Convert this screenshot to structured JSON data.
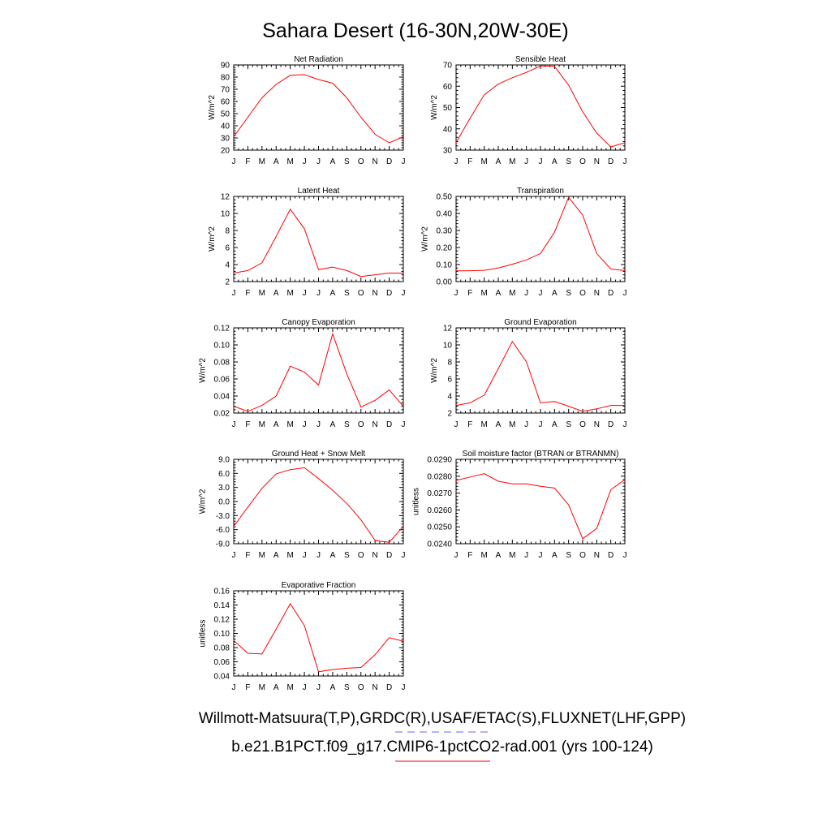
{
  "page": {
    "title": "Sahara Desert (16-30N,20W-30E)"
  },
  "legend": {
    "obs_label": "Willmott-Matsuura(T,P),GRDC(R),USAF/ETAC(S),FLUXNET(LHF,GPP)",
    "obs_color": "#6666ff",
    "model_label": "b.e21.B1PCT.f09_g17.CMIP6-1pctCO2-rad.001 (yrs 100-124)",
    "model_color": "#ff0000"
  },
  "chart_data": [
    {
      "type": "line",
      "title": "Net Radiation",
      "ylabel": "W/m^2",
      "x": [
        "J",
        "F",
        "M",
        "A",
        "M",
        "J",
        "J",
        "A",
        "S",
        "O",
        "N",
        "D",
        "J"
      ],
      "ylim": [
        20,
        90
      ],
      "yticks": [
        20,
        30,
        40,
        50,
        60,
        70,
        80,
        90
      ],
      "ytick_labels": [
        "20",
        "30",
        "40",
        "50",
        "60",
        "70",
        "80",
        "90"
      ],
      "series": [
        {
          "values": [
            31,
            47,
            63,
            74,
            81.5,
            82,
            78,
            75,
            63,
            47,
            33,
            26,
            31
          ],
          "color": "#ff0000"
        }
      ]
    },
    {
      "type": "line",
      "title": "Sensible Heat",
      "ylabel": "W/m^2",
      "x": [
        "J",
        "F",
        "M",
        "A",
        "M",
        "J",
        "J",
        "A",
        "S",
        "O",
        "N",
        "D",
        "J"
      ],
      "ylim": [
        30,
        70
      ],
      "yticks": [
        30,
        40,
        50,
        60,
        70
      ],
      "ytick_labels": [
        "30",
        "40",
        "50",
        "60",
        "70"
      ],
      "series": [
        {
          "values": [
            33.5,
            45,
            56,
            61,
            64,
            66.5,
            69.5,
            69.3,
            60.5,
            48,
            38,
            31.5,
            33.5
          ],
          "color": "#ff0000"
        }
      ]
    },
    {
      "type": "line",
      "title": "Latent Heat",
      "ylabel": "W/m^2",
      "x": [
        "J",
        "F",
        "M",
        "A",
        "M",
        "J",
        "J",
        "A",
        "S",
        "O",
        "N",
        "D",
        "J"
      ],
      "ylim": [
        2,
        12
      ],
      "yticks": [
        2,
        4,
        6,
        8,
        10,
        12
      ],
      "ytick_labels": [
        "2",
        "4",
        "6",
        "8",
        "10",
        "12"
      ],
      "series": [
        {
          "values": [
            3.0,
            3.3,
            4.2,
            7.3,
            10.5,
            8.2,
            3.4,
            3.7,
            3.3,
            2.6,
            2.8,
            3.0,
            3.0
          ],
          "color": "#ff0000"
        }
      ]
    },
    {
      "type": "line",
      "title": "Transpiration",
      "ylabel": "W/m^2",
      "x": [
        "J",
        "F",
        "M",
        "A",
        "M",
        "J",
        "J",
        "A",
        "S",
        "O",
        "N",
        "D",
        "J"
      ],
      "ylim": [
        0,
        0.5
      ],
      "yticks": [
        0,
        0.1,
        0.2,
        0.3,
        0.4,
        0.5
      ],
      "ytick_labels": [
        "0.00",
        "0.10",
        "0.20",
        "0.30",
        "0.40",
        "0.50"
      ],
      "series": [
        {
          "values": [
            0.063,
            0.064,
            0.066,
            0.08,
            0.102,
            0.127,
            0.165,
            0.29,
            0.495,
            0.39,
            0.165,
            0.074,
            0.065
          ],
          "color": "#ff0000"
        }
      ]
    },
    {
      "type": "line",
      "title": "Canopy Evaporation",
      "ylabel": "W/m^2",
      "x": [
        "J",
        "F",
        "M",
        "A",
        "M",
        "J",
        "J",
        "A",
        "S",
        "O",
        "N",
        "D",
        "J"
      ],
      "ylim": [
        0.02,
        0.12
      ],
      "yticks": [
        0.02,
        0.04,
        0.06,
        0.08,
        0.1,
        0.12
      ],
      "ytick_labels": [
        "0.02",
        "0.04",
        "0.06",
        "0.08",
        "0.10",
        "0.12"
      ],
      "series": [
        {
          "values": [
            0.028,
            0.022,
            0.029,
            0.04,
            0.075,
            0.068,
            0.053,
            0.113,
            0.066,
            0.027,
            0.035,
            0.047,
            0.028
          ],
          "color": "#ff0000"
        }
      ]
    },
    {
      "type": "line",
      "title": "Ground Evaporation",
      "ylabel": "W/m^2",
      "x": [
        "J",
        "F",
        "M",
        "A",
        "M",
        "J",
        "J",
        "A",
        "S",
        "O",
        "N",
        "D",
        "J"
      ],
      "ylim": [
        2,
        12
      ],
      "yticks": [
        2,
        4,
        6,
        8,
        10,
        12
      ],
      "ytick_labels": [
        "2",
        "4",
        "6",
        "8",
        "10",
        "12"
      ],
      "series": [
        {
          "values": [
            2.9,
            3.2,
            4.1,
            7.2,
            10.4,
            8.0,
            3.2,
            3.35,
            2.8,
            2.2,
            2.5,
            2.9,
            2.9
          ],
          "color": "#ff0000"
        }
      ]
    },
    {
      "type": "line",
      "title": "Ground Heat + Snow Melt",
      "ylabel": "W/m^2",
      "x": [
        "J",
        "F",
        "M",
        "A",
        "M",
        "J",
        "J",
        "A",
        "S",
        "O",
        "N",
        "D",
        "J"
      ],
      "ylim": [
        -9,
        9
      ],
      "yticks": [
        -9,
        -6,
        -3,
        0,
        3,
        6,
        9
      ],
      "ytick_labels": [
        "-9.0",
        "-6.0",
        "-3.0",
        "0.0",
        "3.0",
        "6.0",
        "9.0"
      ],
      "series": [
        {
          "values": [
            -5.3,
            -1.2,
            2.8,
            5.9,
            6.8,
            7.2,
            4.9,
            2.4,
            -0.4,
            -3.9,
            -8.3,
            -8.7,
            -5.3
          ],
          "color": "#ff0000"
        }
      ]
    },
    {
      "type": "line",
      "title": "Soil moisture factor (BTRAN or BTRANMN)",
      "ylabel": "unitless",
      "x": [
        "J",
        "F",
        "M",
        "A",
        "M",
        "J",
        "J",
        "A",
        "S",
        "O",
        "N",
        "D",
        "J"
      ],
      "ylim": [
        0.024,
        0.029
      ],
      "yticks": [
        0.024,
        0.025,
        0.026,
        0.027,
        0.028,
        0.029
      ],
      "ytick_labels": [
        "0.0240",
        "0.0250",
        "0.0260",
        "0.0270",
        "0.0280",
        "0.0290"
      ],
      "series": [
        {
          "values": [
            0.02775,
            0.02795,
            0.02815,
            0.0277,
            0.02755,
            0.02755,
            0.0274,
            0.0273,
            0.0263,
            0.0243,
            0.0249,
            0.0272,
            0.0278
          ],
          "color": "#ff0000"
        }
      ]
    },
    {
      "type": "line",
      "title": "Evaporative Fraction",
      "ylabel": "unitless",
      "x": [
        "J",
        "F",
        "M",
        "A",
        "M",
        "J",
        "J",
        "A",
        "S",
        "O",
        "N",
        "D",
        "J"
      ],
      "ylim": [
        0.04,
        0.16
      ],
      "yticks": [
        0.04,
        0.06,
        0.08,
        0.1,
        0.12,
        0.14,
        0.16
      ],
      "ytick_labels": [
        "0.04",
        "0.06",
        "0.08",
        "0.10",
        "0.12",
        "0.14",
        "0.16"
      ],
      "series": [
        {
          "values": [
            0.09,
            0.072,
            0.071,
            0.106,
            0.142,
            0.111,
            0.046,
            0.049,
            0.051,
            0.052,
            0.07,
            0.094,
            0.089
          ],
          "color": "#ff0000"
        }
      ]
    }
  ]
}
